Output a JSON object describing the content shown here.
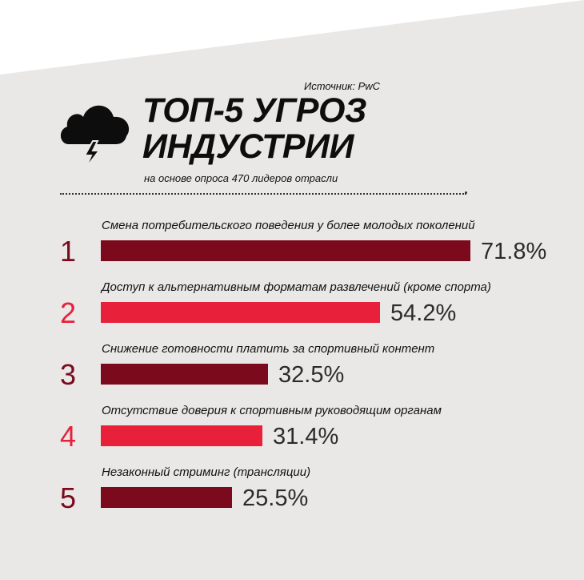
{
  "header": {
    "source": "Источник: PwC",
    "title_line1": "ТОП-5 УГРОЗ",
    "title_line2": "ИНДУСТРИИ",
    "subtitle": "на основе опроса 470 лидеров отрасли"
  },
  "icons": {
    "header_icon": "storm-cloud-icon"
  },
  "colors": {
    "dark_red": "#7a0a1c",
    "bright_red": "#e8203a",
    "background_shape": "#e9e8e7"
  },
  "chart_data": {
    "type": "bar",
    "orientation": "horizontal",
    "title": "ТОП-5 УГРОЗ ИНДУСТРИИ",
    "subtitle": "на основе опроса 470 лидеров отрасли",
    "source": "Источник: PwC",
    "unit": "%",
    "xlim": [
      0,
      100
    ],
    "grid": false,
    "rows": [
      {
        "rank": "1",
        "label": "Смена потребительского поведения у более молодых поколений",
        "value": 71.8,
        "value_label": "71.8%",
        "color": "#7a0a1c"
      },
      {
        "rank": "2",
        "label": "Доступ к альтернативным форматам развлечений (кроме спорта)",
        "value": 54.2,
        "value_label": "54.2%",
        "color": "#e8203a"
      },
      {
        "rank": "3",
        "label": "Снижение готовности платить за спортивный контент",
        "value": 32.5,
        "value_label": "32.5%",
        "color": "#7a0a1c"
      },
      {
        "rank": "4",
        "label": "Отсутствие доверия к спортивным руководящим органам",
        "value": 31.4,
        "value_label": "31.4%",
        "color": "#e8203a"
      },
      {
        "rank": "5",
        "label": "Незаконный стриминг (трансляции)",
        "value": 25.5,
        "value_label": "25.5%",
        "color": "#7a0a1c"
      }
    ]
  }
}
